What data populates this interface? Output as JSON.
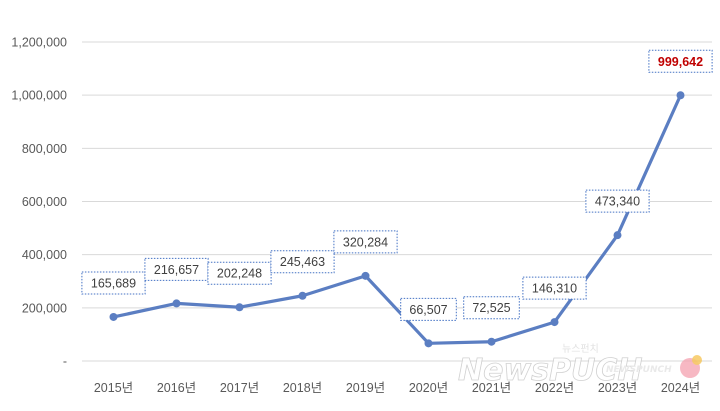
{
  "chart_data": {
    "type": "line",
    "categories": [
      "2015년",
      "2016년",
      "2017년",
      "2018년",
      "2019년",
      "2020년",
      "2021년",
      "2022년",
      "2023년",
      "2024년"
    ],
    "series": [
      {
        "values": [
          165689,
          216657,
          202248,
          245463,
          320284,
          66507,
          72525,
          146310,
          473340,
          999642
        ]
      }
    ],
    "data_labels": [
      "165,689",
      "216,657",
      "202,248",
      "245,463",
      "320,284",
      "66,507",
      "72,525",
      "146,310",
      "473,340",
      "999,642"
    ],
    "highlight_index": 9,
    "yticks": [
      0,
      200000,
      400000,
      600000,
      800000,
      1000000,
      1200000
    ],
    "ytick_labels": [
      "-",
      "200,000",
      "400,000",
      "600,000",
      "800,000",
      "1,000,000",
      "1,200,000"
    ],
    "ylim": [
      0,
      1200000
    ],
    "grid": true,
    "legend": "none",
    "colors": {
      "line": "#5b7ec2",
      "highlight_label": "#c00000",
      "label_border": "#4472c4",
      "grid": "#d9d9d9"
    }
  },
  "watermark": {
    "brand": "NewsPUCH",
    "korean": "뉴스펀치",
    "small": "NEWSPUNCH"
  }
}
